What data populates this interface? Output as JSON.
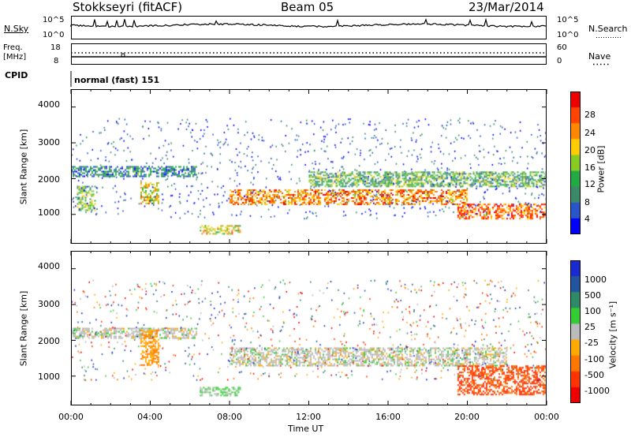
{
  "header": {
    "station": "Stokkseyri (fitACF)",
    "beam": "Beam 05",
    "date": "23/Mar/2014"
  },
  "noise_panel": {
    "left_label": "N.Sky",
    "left_ticks": [
      "10^5",
      "10^0"
    ],
    "right_label": "N.Search",
    "right_ticks": [
      "10^5",
      "10^0"
    ]
  },
  "freq_panel": {
    "left_label_line1": "Freq.",
    "left_label_line2": "[MHz]",
    "left_ticks": [
      "18",
      "8"
    ],
    "right_label": "Nave",
    "right_ticks": [
      "60",
      "0"
    ]
  },
  "cpid": {
    "label": "CPID",
    "value": "normal (fast) 151"
  },
  "colors": {
    "power": [
      "#0000ff",
      "#2a55c8",
      "#3a8a6a",
      "#22aa44",
      "#88cc22",
      "#ffcc00",
      "#ff8800",
      "#ff4400",
      "#ee0000"
    ],
    "velocity": [
      "#1a2ad0",
      "#2255a0",
      "#2e8a66",
      "#33cc33",
      "#bbbbbb",
      "#ffaa00",
      "#ff7700",
      "#ff3300",
      "#ee0000"
    ]
  },
  "chart_data": [
    {
      "type": "heatmap",
      "title": "",
      "quantity": "Power",
      "xlabel": "Time UT",
      "ylabel": "Slant Range [km]",
      "xlim": [
        "00:00",
        "24:00"
      ],
      "ylim": [
        180,
        4500
      ],
      "x_ticks": [
        "00:00",
        "04:00",
        "08:00",
        "12:00",
        "16:00",
        "20:00",
        "00:00"
      ],
      "y_ticks": [
        1000,
        2000,
        3000,
        4000
      ],
      "colorbar": {
        "label": "Power [dB]",
        "ticks": [
          "28",
          "24",
          "20",
          "16",
          "12",
          "8",
          "4"
        ],
        "range": [
          0,
          30
        ]
      },
      "echo_regions": [
        {
          "t_start": 0.0,
          "t_end": 6.3,
          "range_km": [
            2050,
            2350
          ],
          "level_db": 8
        },
        {
          "t_start": 0.3,
          "t_end": 1.2,
          "range_km": [
            1100,
            1800
          ],
          "level_db": 14
        },
        {
          "t_start": 3.5,
          "t_end": 4.4,
          "range_km": [
            1300,
            1900
          ],
          "level_db": 18
        },
        {
          "t_start": 6.5,
          "t_end": 8.5,
          "range_km": [
            450,
            700
          ],
          "level_db": 18
        },
        {
          "t_start": 8.0,
          "t_end": 20.0,
          "range_km": [
            1300,
            1700
          ],
          "level_db": 22
        },
        {
          "t_start": 12.0,
          "t_end": 24.0,
          "range_km": [
            1800,
            2200
          ],
          "level_db": 12
        },
        {
          "t_start": 19.5,
          "t_end": 24.0,
          "range_km": [
            900,
            1300
          ],
          "level_db": 24
        }
      ]
    },
    {
      "type": "heatmap",
      "title": "",
      "quantity": "Velocity",
      "xlabel": "Time UT",
      "ylabel": "Slant Range [km]",
      "xlim": [
        "00:00",
        "24:00"
      ],
      "ylim": [
        180,
        4500
      ],
      "x_ticks": [
        "00:00",
        "04:00",
        "08:00",
        "12:00",
        "16:00",
        "20:00",
        "00:00"
      ],
      "y_ticks": [
        1000,
        2000,
        3000,
        4000
      ],
      "colorbar": {
        "label": "Velocity [m s⁻¹]",
        "ticks": [
          "1000",
          "500",
          "100",
          "25",
          "-25",
          "-100",
          "-500",
          "-1000"
        ],
        "range": [
          -1000,
          1000
        ]
      },
      "echo_regions": [
        {
          "t_start": 0.0,
          "t_end": 6.3,
          "range_km": [
            2050,
            2350
          ],
          "velocity": 0
        },
        {
          "t_start": 3.5,
          "t_end": 4.4,
          "range_km": [
            1300,
            2300
          ],
          "velocity": -300
        },
        {
          "t_start": 6.5,
          "t_end": 8.5,
          "range_km": [
            450,
            700
          ],
          "velocity": 150
        },
        {
          "t_start": 8.0,
          "t_end": 22.0,
          "range_km": [
            1300,
            1800
          ],
          "velocity": 0
        },
        {
          "t_start": 19.5,
          "t_end": 24.0,
          "range_km": [
            500,
            1300
          ],
          "velocity": -600
        }
      ]
    }
  ]
}
